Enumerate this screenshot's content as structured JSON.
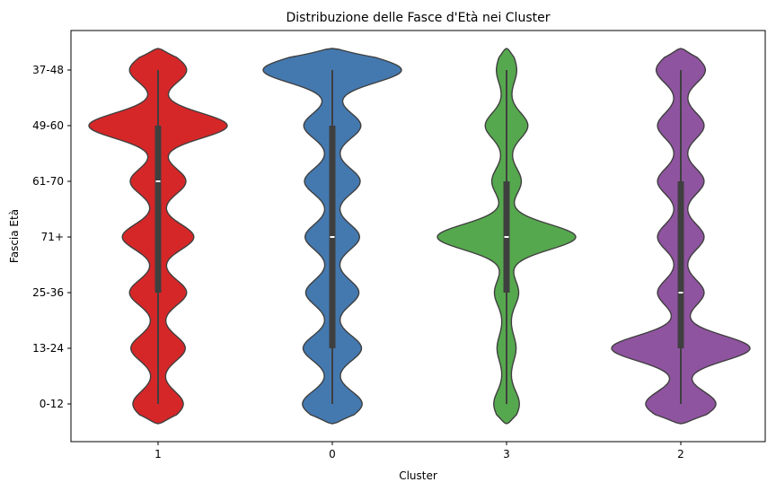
{
  "chart_data": {
    "type": "violin",
    "title": "Distribuzione delle Fasce d'Età nei Cluster",
    "xlabel": "Cluster",
    "ylabel": "Fascia Età",
    "categories": [
      "1",
      "0",
      "3",
      "2"
    ],
    "y_categories": [
      "37-48",
      "49-60",
      "61-70",
      "71+",
      "25-36",
      "13-24",
      "0-12"
    ],
    "grid": false,
    "legend": "none",
    "series": [
      {
        "category": "1",
        "color": "#d62728",
        "density": [
          0.38,
          1.0,
          0.37,
          0.49,
          0.38,
          0.36,
          0.33
        ],
        "quartile_low": "25-36",
        "median": "61-70",
        "quartile_high": "49-60",
        "min": "0-12",
        "max": "37-48"
      },
      {
        "category": "0",
        "color": "#4479b0",
        "density": [
          1.0,
          0.38,
          0.37,
          0.36,
          0.35,
          0.39,
          0.4
        ],
        "quartile_low": "13-24",
        "median": "71+",
        "quartile_high": "49-60",
        "min": "0-12",
        "max": "37-48"
      },
      {
        "category": "3",
        "color": "#56a84e",
        "density": [
          0.1,
          0.27,
          0.17,
          1.0,
          0.13,
          0.09,
          0.14
        ],
        "quartile_low": "25-36",
        "median": "71+",
        "quartile_high": "61-70",
        "min": "0-12",
        "max": "37-48"
      },
      {
        "category": "2",
        "color": "#8f54a0",
        "density": [
          0.32,
          0.3,
          0.3,
          0.3,
          0.3,
          1.0,
          0.48
        ],
        "quartile_low": "13-24",
        "median": "25-36",
        "quartile_high": "61-70",
        "min": "0-12",
        "max": "37-48"
      }
    ]
  }
}
